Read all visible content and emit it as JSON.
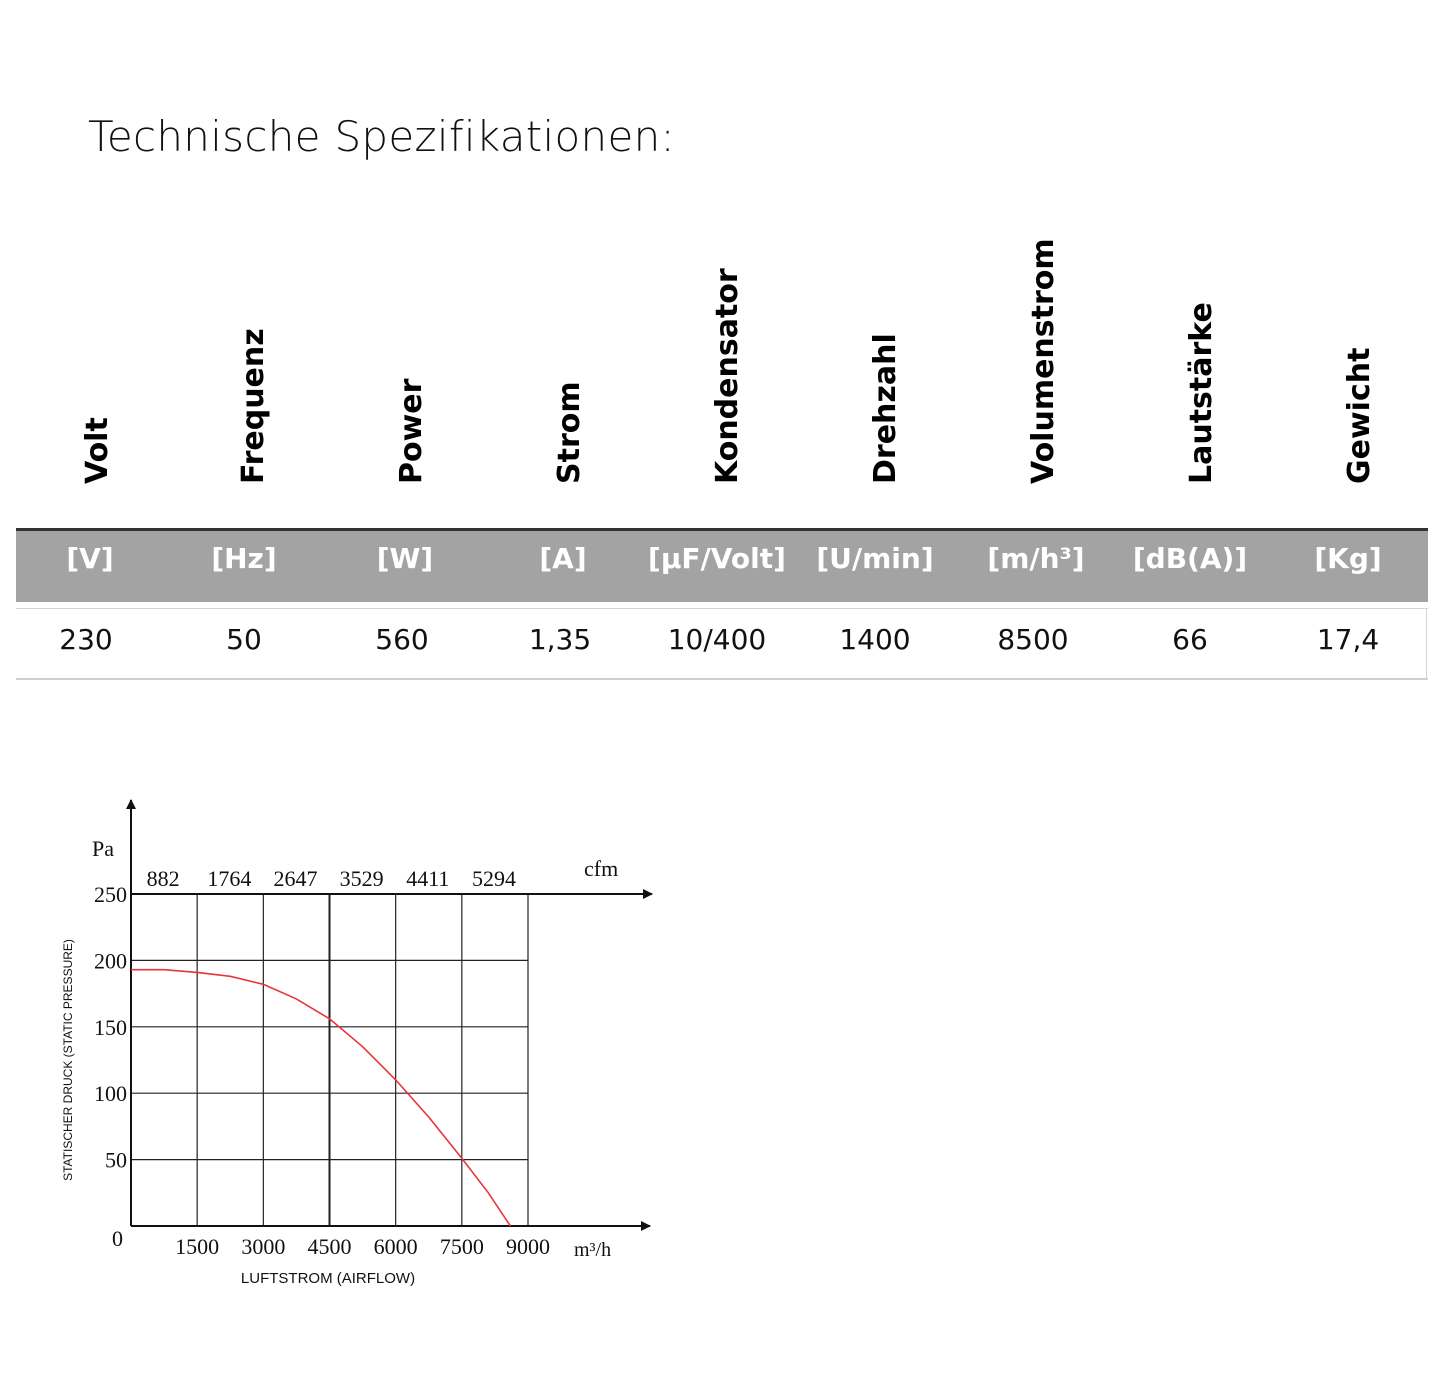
{
  "title": "Technische Spezifikationen:",
  "table": {
    "headers": [
      "Volt",
      "Frequenz",
      "Power",
      "Strom",
      "Kondensator",
      "Drehzahl",
      "Volumenstrom",
      "Lautstärke",
      "Gewicht"
    ],
    "units": [
      "[V]",
      "[Hz]",
      "[W]",
      "[A]",
      "[µF/Volt]",
      "[U/min]",
      "[m/h³]",
      "[dB(A)]",
      "[Kg]"
    ],
    "values": [
      "230",
      "50",
      "560",
      "1,35",
      "10/400",
      "1400",
      "8500",
      "66",
      "17,4"
    ]
  },
  "chart_data": {
    "type": "line",
    "ylabel": "STATISCHER DRUCK (STATIC PRESSURE)",
    "xlabel": "LUFTSTROM (AIRFLOW)",
    "y_unit": "Pa",
    "x_unit": "m³/h",
    "x2_unit": "cfm",
    "origin_label": "0",
    "xlim": [
      0,
      9000
    ],
    "ylim": [
      0,
      250
    ],
    "x_ticks": [
      "1500",
      "3000",
      "4500",
      "6000",
      "7500",
      "9000"
    ],
    "x_tick_values": [
      1500,
      3000,
      4500,
      6000,
      7500,
      9000
    ],
    "x2_ticks": [
      "882",
      "1764",
      "2647",
      "3529",
      "4411",
      "5294"
    ],
    "y_ticks": [
      "50",
      "100",
      "150",
      "200",
      "250"
    ],
    "y_tick_values": [
      50,
      100,
      150,
      200,
      250
    ],
    "grid": true,
    "line_color": "#e8343a",
    "series": [
      {
        "x": [
          0,
          750,
          1500,
          2250,
          3000,
          3750,
          4500,
          5250,
          6000,
          6750,
          7500,
          8100,
          8600
        ],
        "y": [
          193,
          193,
          191,
          188,
          182,
          171,
          156,
          135,
          110,
          82,
          51,
          25,
          0
        ]
      }
    ]
  }
}
